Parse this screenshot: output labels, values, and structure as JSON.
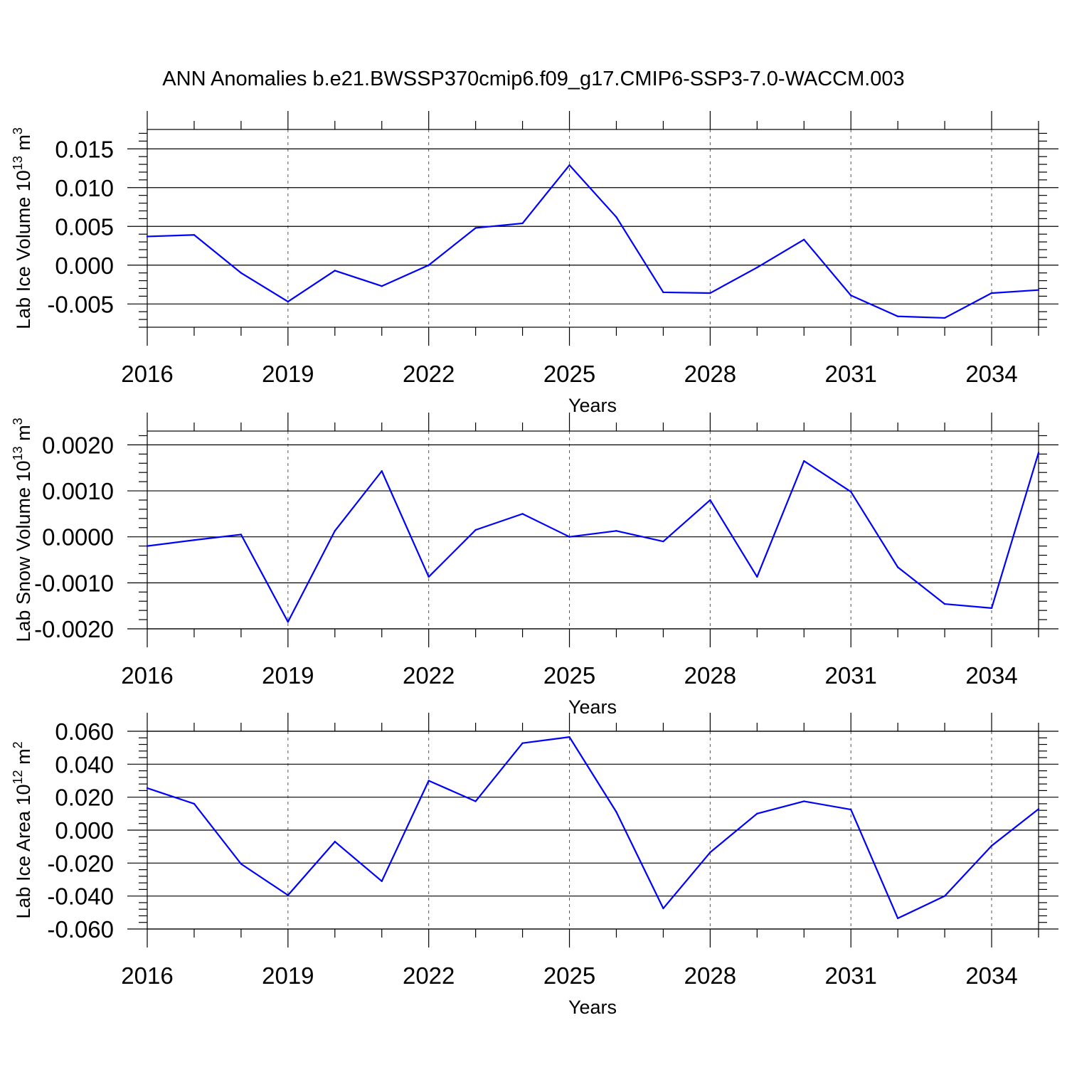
{
  "figure_title": "ANN Anomalies b.e21.BWSSP370cmip6.f09_g17.CMIP6-SSP3-7.0-WACCM.003",
  "colors": {
    "series": "#0000ff",
    "axes": "#000000",
    "grid": "#555555",
    "background": "#ffffff"
  },
  "chart_data": [
    {
      "type": "line",
      "title": "",
      "xlabel": "Years",
      "ylabel_main": "Lab Ice Volume 10",
      "ylabel_exp": "13",
      "ylabel_unit": " m",
      "ylabel_unit_exp": "3",
      "xlim": [
        2016,
        2035
      ],
      "ylim": [
        -0.008,
        0.0175
      ],
      "x_ticks": [
        2016,
        2019,
        2022,
        2025,
        2028,
        2031,
        2034
      ],
      "x_tick_labels": [
        "2016",
        "2019",
        "2022",
        "2025",
        "2028",
        "2031",
        "2034"
      ],
      "y_ticks": [
        0.015,
        0.01,
        0.005,
        0.0,
        -0.005
      ],
      "y_tick_labels": [
        "0.015",
        "0.010",
        "0.005",
        "0.000",
        "-0.005"
      ],
      "y_minor_step": 0.001,
      "grid": "vertical dashed at major x ticks",
      "series": [
        {
          "x": [
            2016,
            2017,
            2018,
            2019,
            2020,
            2021,
            2022,
            2023,
            2024,
            2025,
            2026,
            2027,
            2028,
            2029,
            2030,
            2031,
            2032,
            2033,
            2034,
            2035
          ],
          "y": [
            0.0037,
            0.0039,
            -0.001,
            -0.0047,
            -0.0007,
            -0.0027,
            0.0,
            0.0048,
            0.0054,
            0.0129,
            0.0062,
            -0.0035,
            -0.0036,
            -0.0003,
            0.0033,
            -0.0039,
            -0.0066,
            -0.0068,
            -0.0036,
            -0.0032
          ]
        }
      ]
    },
    {
      "type": "line",
      "title": "",
      "xlabel": "Years",
      "ylabel_main": "Lab Snow Volume 10",
      "ylabel_exp": "13",
      "ylabel_unit": " m",
      "ylabel_unit_exp": "3",
      "xlim": [
        2016,
        2035
      ],
      "ylim": [
        -0.002,
        0.0023
      ],
      "x_ticks": [
        2016,
        2019,
        2022,
        2025,
        2028,
        2031,
        2034
      ],
      "x_tick_labels": [
        "2016",
        "2019",
        "2022",
        "2025",
        "2028",
        "2031",
        "2034"
      ],
      "y_ticks": [
        0.002,
        0.001,
        0.0,
        -0.001,
        -0.002
      ],
      "y_tick_labels": [
        "0.0020",
        "0.0010",
        "0.0000",
        "-0.0010",
        "-0.0020"
      ],
      "y_minor_step": 0.0002,
      "grid": "vertical dashed at major x ticks",
      "series": [
        {
          "x": [
            2016,
            2017,
            2018,
            2019,
            2020,
            2021,
            2022,
            2023,
            2024,
            2025,
            2026,
            2027,
            2028,
            2029,
            2030,
            2031,
            2032,
            2033,
            2034,
            2035
          ],
          "y": [
            -0.0002,
            -7e-05,
            5e-05,
            -0.00185,
            0.00013,
            0.00143,
            -0.00087,
            0.00015,
            0.0005,
            0.0,
            0.00013,
            -0.0001,
            0.0008,
            -0.00087,
            0.00165,
            0.00098,
            -0.00066,
            -0.00146,
            -0.00155,
            0.00183
          ]
        }
      ]
    },
    {
      "type": "line",
      "title": "",
      "xlabel": "Years",
      "ylabel_main": "Lab Ice Area 10",
      "ylabel_exp": "12",
      "ylabel_unit": " m",
      "ylabel_unit_exp": "2",
      "xlim": [
        2016,
        2035
      ],
      "ylim": [
        -0.06,
        0.06
      ],
      "x_ticks": [
        2016,
        2019,
        2022,
        2025,
        2028,
        2031,
        2034
      ],
      "x_tick_labels": [
        "2016",
        "2019",
        "2022",
        "2025",
        "2028",
        "2031",
        "2034"
      ],
      "y_ticks": [
        0.06,
        0.04,
        0.02,
        0.0,
        -0.02,
        -0.04,
        -0.06
      ],
      "y_tick_labels": [
        "0.060",
        "0.040",
        "0.020",
        "0.000",
        "-0.020",
        "-0.040",
        "-0.060"
      ],
      "y_minor_step": 0.004,
      "grid": "vertical dashed at major x ticks",
      "series": [
        {
          "x": [
            2016,
            2017,
            2018,
            2019,
            2020,
            2021,
            2022,
            2023,
            2024,
            2025,
            2026,
            2027,
            2028,
            2029,
            2030,
            2031,
            2032,
            2033,
            2034,
            2035
          ],
          "y": [
            0.0255,
            0.016,
            -0.0205,
            -0.0395,
            -0.007,
            -0.031,
            0.03,
            0.0175,
            0.0528,
            0.0565,
            0.011,
            -0.0475,
            -0.0135,
            0.01,
            0.0175,
            0.0125,
            -0.0535,
            -0.04,
            -0.0095,
            0.0128
          ]
        }
      ]
    }
  ]
}
